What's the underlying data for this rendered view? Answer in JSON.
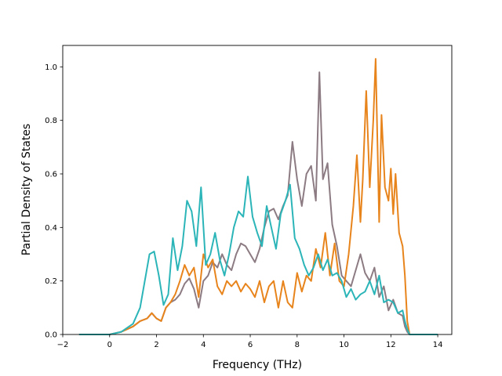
{
  "chart_data": {
    "type": "line",
    "title": "",
    "xlabel": "Frequency (THz)",
    "ylabel": "Partial Density of States",
    "xlim": [
      -2,
      14.6
    ],
    "ylim": [
      0,
      1.08
    ],
    "xticks": [
      -2,
      0,
      2,
      4,
      6,
      8,
      10,
      12,
      14
    ],
    "xtick_labels": [
      "−2",
      "0",
      "2",
      "4",
      "6",
      "8",
      "10",
      "12",
      "14"
    ],
    "yticks": [
      0,
      0.2,
      0.4,
      0.6,
      0.8,
      1.0
    ],
    "ytick_labels": [
      "0.0",
      "0.2",
      "0.4",
      "0.6",
      "0.8",
      "1.0"
    ],
    "grid": false,
    "legend": "none",
    "series": [
      {
        "color": "#8c7b82",
        "x": [
          -1.3,
          0,
          0.5,
          1.0,
          1.3,
          1.6,
          1.8,
          2.0,
          2.2,
          2.4,
          2.6,
          2.8,
          3.0,
          3.2,
          3.4,
          3.6,
          3.8,
          4.0,
          4.2,
          4.4,
          4.6,
          4.8,
          5.0,
          5.2,
          5.4,
          5.6,
          5.8,
          6.0,
          6.2,
          6.4,
          6.6,
          6.8,
          7.0,
          7.2,
          7.4,
          7.6,
          7.8,
          8.0,
          8.2,
          8.4,
          8.6,
          8.8,
          8.95,
          9.1,
          9.3,
          9.5,
          9.7,
          9.9,
          10.1,
          10.3,
          10.5,
          10.7,
          10.9,
          11.1,
          11.3,
          11.5,
          11.7,
          11.9,
          12.1,
          12.3,
          12.5,
          12.6,
          12.7,
          12.8,
          14.0
        ],
        "y": [
          0,
          0,
          0.01,
          0.03,
          0.05,
          0.06,
          0.08,
          0.06,
          0.05,
          0.1,
          0.12,
          0.13,
          0.15,
          0.19,
          0.21,
          0.17,
          0.1,
          0.2,
          0.22,
          0.27,
          0.25,
          0.3,
          0.26,
          0.24,
          0.3,
          0.34,
          0.33,
          0.3,
          0.27,
          0.32,
          0.4,
          0.46,
          0.47,
          0.43,
          0.48,
          0.52,
          0.72,
          0.58,
          0.48,
          0.6,
          0.63,
          0.5,
          0.98,
          0.58,
          0.64,
          0.41,
          0.33,
          0.22,
          0.2,
          0.18,
          0.24,
          0.3,
          0.23,
          0.2,
          0.25,
          0.14,
          0.18,
          0.09,
          0.13,
          0.08,
          0.07,
          0.03,
          0.01,
          0,
          0
        ]
      },
      {
        "color": "#e8841c",
        "x": [
          -1.3,
          0,
          0.5,
          1.0,
          1.3,
          1.6,
          1.8,
          2.0,
          2.2,
          2.4,
          2.6,
          2.8,
          3.0,
          3.2,
          3.4,
          3.6,
          3.8,
          4.0,
          4.2,
          4.4,
          4.6,
          4.8,
          5.0,
          5.2,
          5.4,
          5.6,
          5.8,
          6.0,
          6.2,
          6.4,
          6.6,
          6.8,
          7.0,
          7.2,
          7.4,
          7.6,
          7.8,
          8.0,
          8.2,
          8.4,
          8.6,
          8.8,
          9.0,
          9.2,
          9.4,
          9.6,
          9.8,
          10.0,
          10.2,
          10.4,
          10.55,
          10.7,
          10.8,
          10.95,
          11.1,
          11.25,
          11.35,
          11.5,
          11.6,
          11.75,
          11.9,
          12.0,
          12.1,
          12.2,
          12.35,
          12.5,
          12.6,
          12.7,
          12.8,
          14.0
        ],
        "y": [
          0,
          0,
          0.01,
          0.03,
          0.05,
          0.06,
          0.08,
          0.06,
          0.05,
          0.1,
          0.12,
          0.15,
          0.2,
          0.26,
          0.22,
          0.25,
          0.14,
          0.3,
          0.25,
          0.28,
          0.18,
          0.15,
          0.2,
          0.18,
          0.2,
          0.16,
          0.19,
          0.17,
          0.14,
          0.2,
          0.12,
          0.18,
          0.2,
          0.1,
          0.2,
          0.12,
          0.1,
          0.23,
          0.16,
          0.22,
          0.2,
          0.32,
          0.25,
          0.38,
          0.22,
          0.34,
          0.2,
          0.18,
          0.3,
          0.48,
          0.67,
          0.42,
          0.58,
          0.91,
          0.55,
          0.8,
          1.03,
          0.42,
          0.82,
          0.55,
          0.5,
          0.62,
          0.45,
          0.6,
          0.38,
          0.33,
          0.22,
          0.05,
          0,
          0
        ]
      },
      {
        "color": "#2cb5b8",
        "x": [
          -1.3,
          0,
          0.5,
          1.0,
          1.3,
          1.5,
          1.7,
          1.9,
          2.1,
          2.3,
          2.5,
          2.7,
          2.9,
          3.1,
          3.3,
          3.5,
          3.7,
          3.9,
          4.1,
          4.3,
          4.5,
          4.7,
          4.9,
          5.1,
          5.3,
          5.5,
          5.7,
          5.9,
          6.1,
          6.3,
          6.5,
          6.7,
          6.9,
          7.1,
          7.3,
          7.5,
          7.7,
          7.9,
          8.1,
          8.3,
          8.5,
          8.7,
          8.9,
          9.1,
          9.3,
          9.5,
          9.7,
          9.9,
          10.1,
          10.3,
          10.5,
          10.7,
          10.9,
          11.1,
          11.3,
          11.5,
          11.7,
          11.9,
          12.1,
          12.3,
          12.5,
          12.6,
          12.7,
          12.8,
          14.0
        ],
        "y": [
          0,
          0,
          0.01,
          0.04,
          0.1,
          0.2,
          0.3,
          0.31,
          0.22,
          0.11,
          0.15,
          0.36,
          0.24,
          0.33,
          0.5,
          0.46,
          0.33,
          0.55,
          0.26,
          0.3,
          0.38,
          0.28,
          0.22,
          0.3,
          0.4,
          0.46,
          0.44,
          0.59,
          0.44,
          0.38,
          0.33,
          0.48,
          0.4,
          0.32,
          0.45,
          0.5,
          0.56,
          0.36,
          0.32,
          0.26,
          0.22,
          0.25,
          0.3,
          0.24,
          0.28,
          0.22,
          0.23,
          0.2,
          0.14,
          0.17,
          0.13,
          0.15,
          0.16,
          0.2,
          0.15,
          0.22,
          0.12,
          0.13,
          0.12,
          0.08,
          0.09,
          0.05,
          0.02,
          0,
          0
        ]
      }
    ]
  }
}
